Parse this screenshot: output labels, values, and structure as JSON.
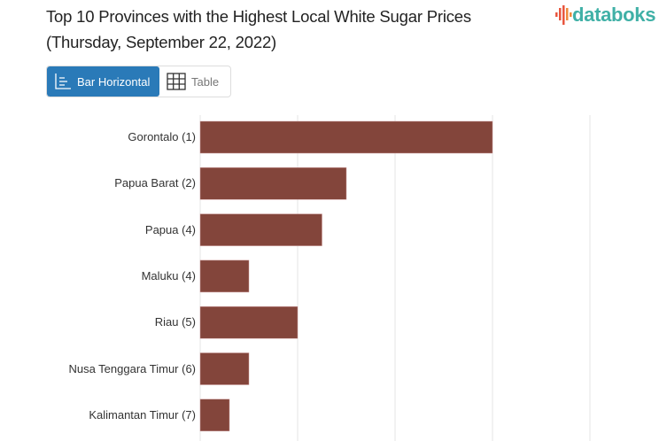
{
  "header": {
    "title_line1": "Top 10 Provinces with the Highest Local White Sugar Prices",
    "title_line2": "(Thursday, September 22, 2022)",
    "logo": "databoks"
  },
  "view_toggle": {
    "bar_label": "Bar Horizontal",
    "table_label": "Table",
    "active": "Bar Horizontal",
    "bar_icon": "bar-chart-icon",
    "table_icon": "grid-icon"
  },
  "colors": {
    "bar": "#83453b",
    "active_button": "#2a7ab8",
    "logo": "#3fb0a6",
    "grid": "#e6e6e6"
  },
  "chart_data": {
    "type": "bar",
    "orientation": "horizontal",
    "categories": [
      "Gorontalo (1)",
      "Papua Barat (2)",
      "Papua (4)",
      "Maluku (4)",
      "Riau (5)",
      "Nusa Tenggara Timur (6)",
      "Kalimantan Timur (7)"
    ],
    "values": [
      3.0,
      1.5,
      1.25,
      0.5,
      1.0,
      0.5,
      0.3
    ],
    "xlim": [
      0,
      4
    ],
    "grid": true,
    "xlabel": "",
    "ylabel": "",
    "title": ""
  }
}
